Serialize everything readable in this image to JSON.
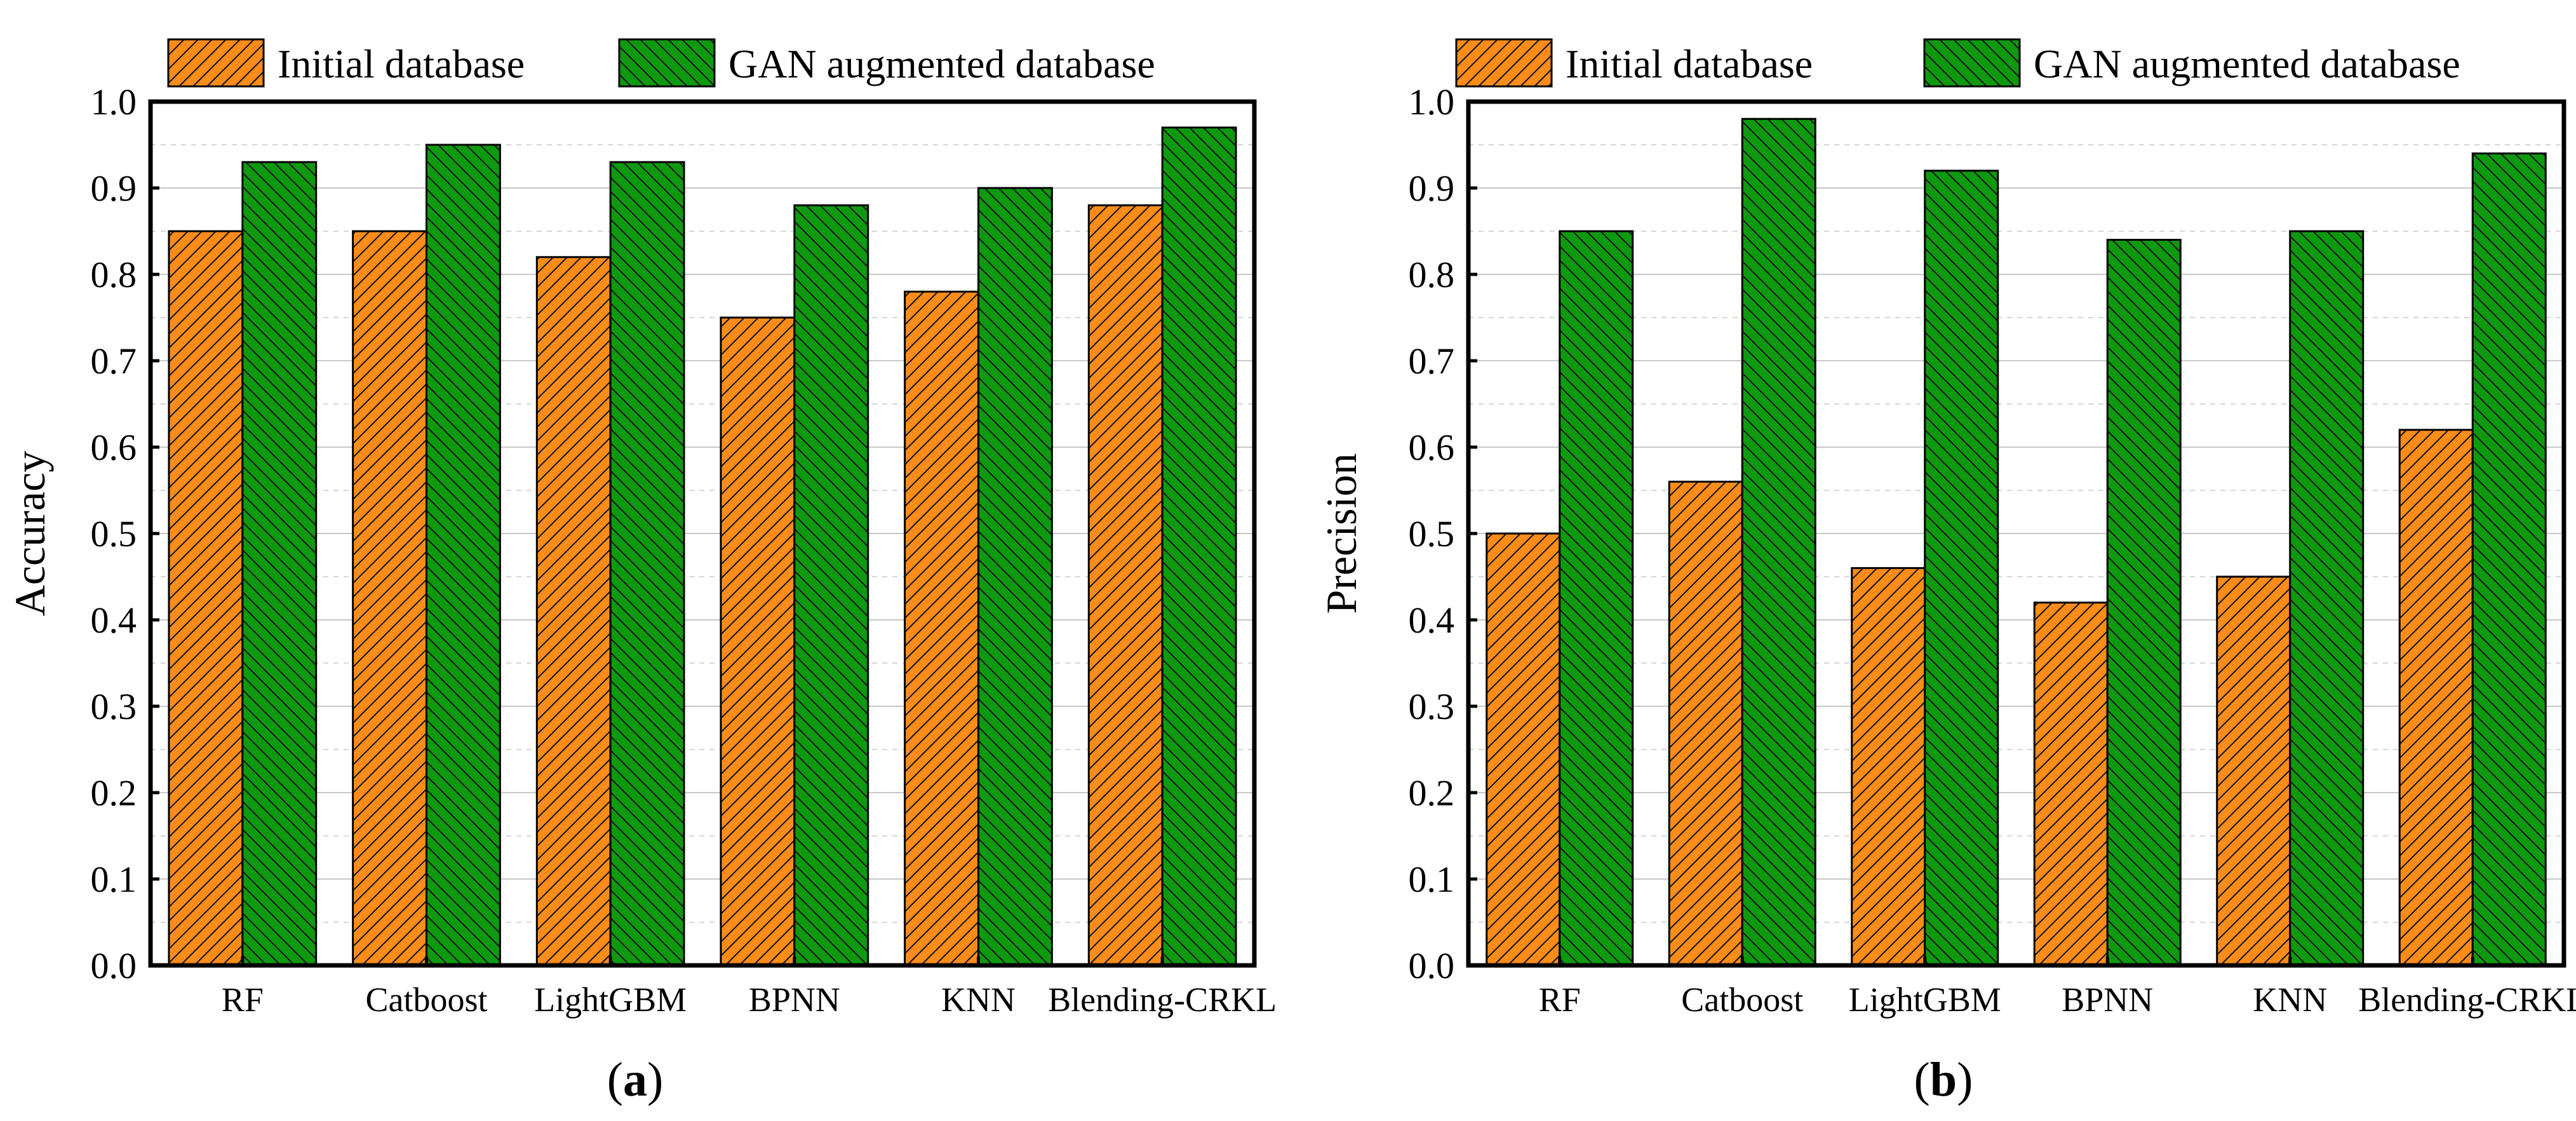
{
  "colors": {
    "initial_fill": "#FF8C19",
    "gan_fill": "#0E9A0E",
    "hatch": "#1a1a1a",
    "axis": "#000000",
    "grid": "#c8c8c8"
  },
  "chart_data": [
    {
      "type": "bar",
      "panel_label": "(a)",
      "panel_letter": "a",
      "categories": [
        "RF",
        "Catboost",
        "LightGBM",
        "BPNN",
        "KNN",
        "Blending-CRKL"
      ],
      "series": [
        {
          "name": "Initial database",
          "values": [
            0.85,
            0.85,
            0.82,
            0.75,
            0.78,
            0.88
          ]
        },
        {
          "name": "GAN augmented database",
          "values": [
            0.93,
            0.95,
            0.93,
            0.88,
            0.9,
            0.97
          ]
        }
      ],
      "title": "",
      "xlabel": "",
      "ylabel": "Accuracy",
      "ylim": [
        0.0,
        1.0
      ],
      "yticks": [
        "0.0",
        "0.1",
        "0.2",
        "0.3",
        "0.4",
        "0.5",
        "0.6",
        "0.7",
        "0.8",
        "0.9",
        "1.0"
      ],
      "legend_position": "top",
      "grid": true
    },
    {
      "type": "bar",
      "panel_label": "(b)",
      "panel_letter": "b",
      "categories": [
        "RF",
        "Catboost",
        "LightGBM",
        "BPNN",
        "KNN",
        "Blending-CRKL"
      ],
      "series": [
        {
          "name": "Initial database",
          "values": [
            0.5,
            0.56,
            0.46,
            0.42,
            0.45,
            0.62
          ]
        },
        {
          "name": "GAN augmented database",
          "values": [
            0.85,
            0.98,
            0.92,
            0.84,
            0.85,
            0.94
          ]
        }
      ],
      "title": "",
      "xlabel": "",
      "ylabel": "Precision",
      "ylim": [
        0.0,
        1.0
      ],
      "yticks": [
        "0.0",
        "0.1",
        "0.2",
        "0.3",
        "0.4",
        "0.5",
        "0.6",
        "0.7",
        "0.8",
        "0.9",
        "1.0"
      ],
      "legend_position": "top",
      "grid": true
    }
  ]
}
